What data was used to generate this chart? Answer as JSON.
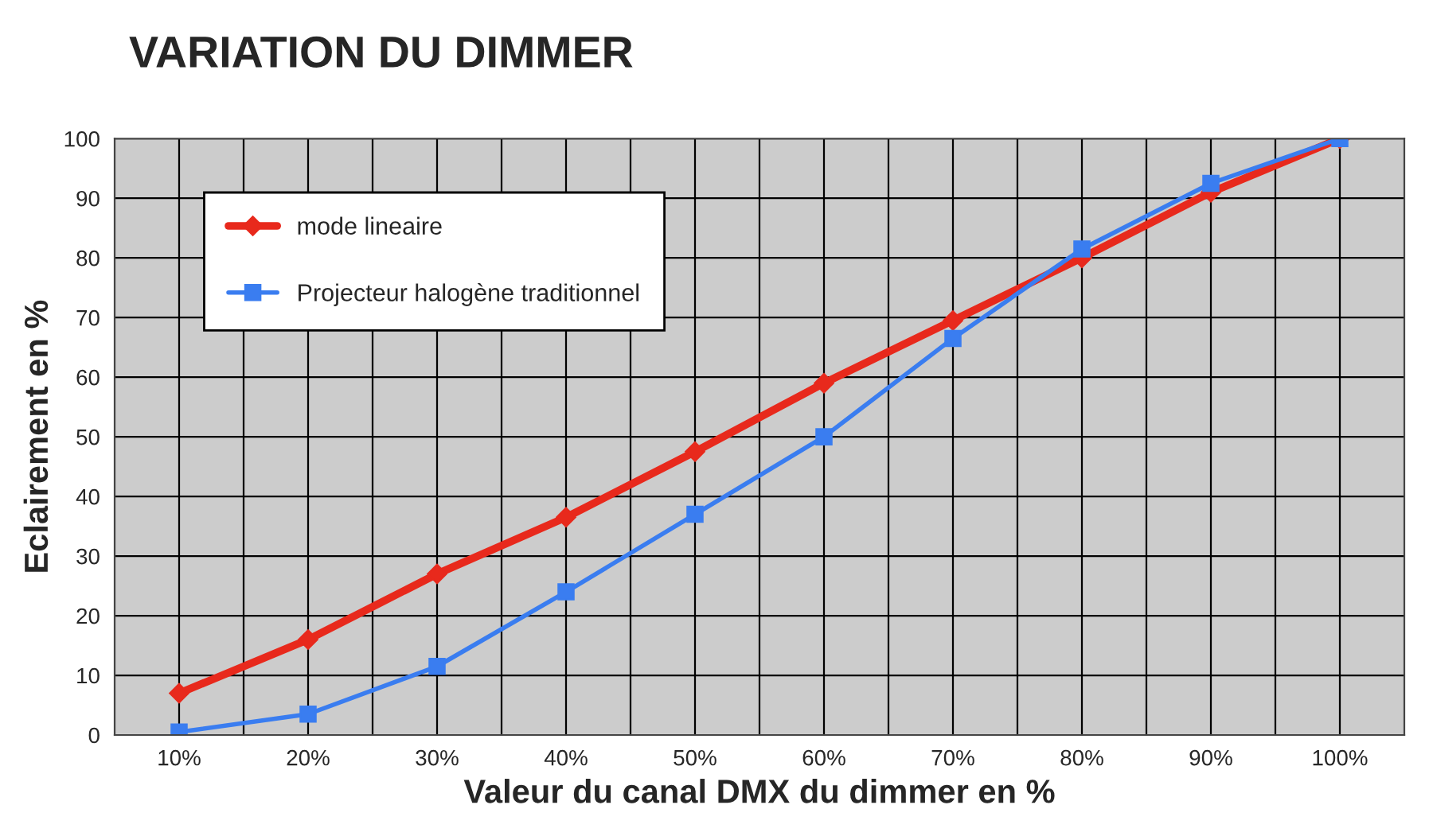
{
  "chart_data": {
    "type": "line",
    "title": "VARIATION DU DIMMER",
    "xlabel": "Valeur du canal DMX du dimmer en %",
    "ylabel": "Eclairement en %",
    "categories": [
      "10%",
      "20%",
      "30%",
      "40%",
      "50%",
      "60%",
      "70%",
      "80%",
      "90%",
      "100%"
    ],
    "series": [
      {
        "name": "mode lineaire",
        "color": "#e8291c",
        "marker": "diamond",
        "values": [
          7,
          16,
          27,
          36.5,
          47.5,
          59,
          69.5,
          80,
          91,
          100
        ]
      },
      {
        "name": "Projecteur halogène traditionnel",
        "color": "#3a7df0",
        "marker": "square",
        "values": [
          0.5,
          3.5,
          11.5,
          24,
          37,
          50,
          66.5,
          81.5,
          92.5,
          100
        ]
      }
    ],
    "ylim": [
      0,
      100
    ],
    "yticks": [
      0,
      10,
      20,
      30,
      40,
      50,
      60,
      70,
      80,
      90,
      100
    ],
    "grid": true,
    "legend": "top left"
  }
}
